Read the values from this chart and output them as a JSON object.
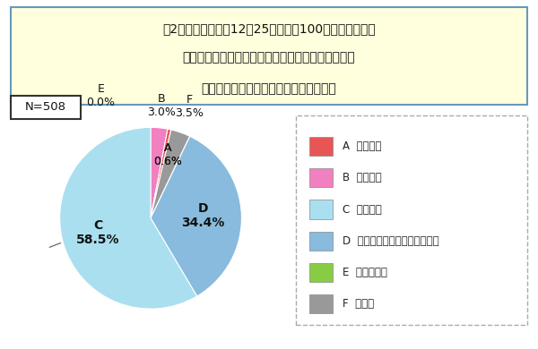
{
  "title_line1": "問2．菅改造内閣は12月25日で発足100日を迎えます。",
  "title_line2": "現在までの菅政権は、あなたが発足時に抱いていた",
  "title_line3": "期待に比べどうでしたか。【単数回答】",
  "n_label": "N=508",
  "slices": [
    {
      "label": "A",
      "pct": 0.6,
      "color": "#E85555",
      "legend": "A  期待以上"
    },
    {
      "label": "B",
      "pct": 3.0,
      "color": "#F080C0",
      "legend": "B  期待通り"
    },
    {
      "label": "C",
      "pct": 58.5,
      "color": "#AADFF0",
      "legend": "C  期待以下"
    },
    {
      "label": "D",
      "pct": 34.4,
      "color": "#88BBDD",
      "legend": "D  そもそも期待していなかった"
    },
    {
      "label": "E",
      "pct": 0.0,
      "color": "#88CC44",
      "legend": "E  わからない"
    },
    {
      "label": "F",
      "pct": 3.5,
      "color": "#999999",
      "legend": "F  無回答"
    }
  ],
  "bg_color": "#FFFFFF",
  "title_bg": "#FFFFDD",
  "title_border": "#6699BB",
  "legend_border": "#AAAAAA",
  "startangle": 96.0
}
